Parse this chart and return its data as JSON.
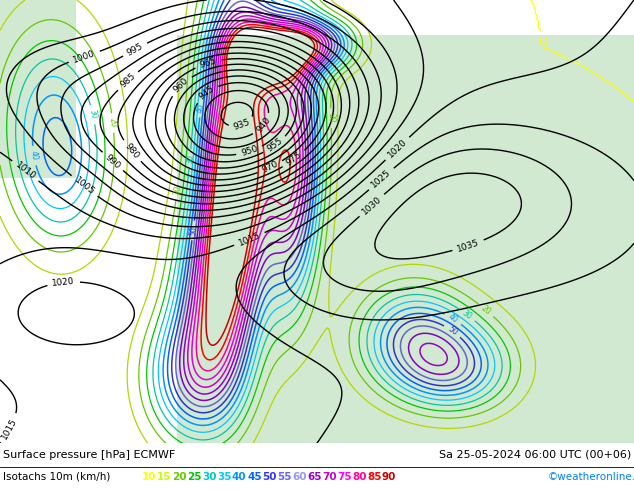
{
  "title_left": "Surface pressure [hPa] ECMWF",
  "title_right": "Sa 25-05-2024 06:00 UTC (00+06)",
  "legend_label": "Isotachs 10m (km/h)",
  "copyright": "©weatheronline.co.uk",
  "legend_values": [
    10,
    15,
    20,
    25,
    30,
    35,
    40,
    45,
    50,
    55,
    60,
    65,
    70,
    75,
    80,
    85,
    90
  ],
  "legend_colors": [
    "#ffff00",
    "#c8ff00",
    "#64c800",
    "#00c800",
    "#00c8c8",
    "#00c8ff",
    "#0096ff",
    "#0064ff",
    "#3232ff",
    "#6464ff",
    "#9696ff",
    "#9600c8",
    "#c800c8",
    "#ff00ff",
    "#ff0096",
    "#ff0000",
    "#c80000"
  ],
  "bg_color": "#e8e8e8",
  "land_color": "#c8e6c8",
  "figsize": [
    6.34,
    4.9
  ],
  "dpi": 100
}
